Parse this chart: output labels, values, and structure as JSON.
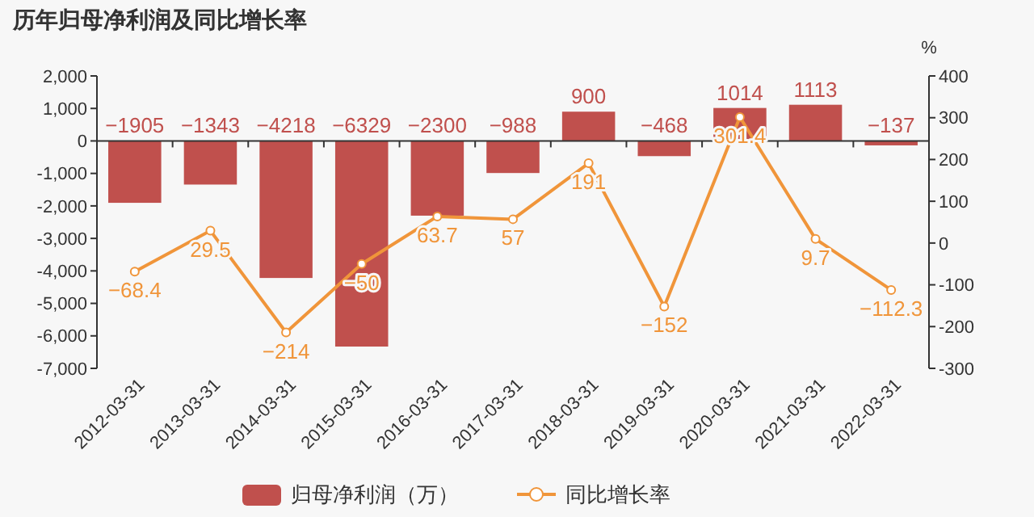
{
  "chart_data": {
    "type": "bar",
    "title": "历年归母净利润及同比增长率",
    "y2label": "%",
    "categories": [
      "2012-03-31",
      "2013-03-31",
      "2014-03-31",
      "2015-03-31",
      "2016-03-31",
      "2017-03-31",
      "2018-03-31",
      "2019-03-31",
      "2020-03-31",
      "2021-03-31",
      "2022-03-31"
    ],
    "series": [
      {
        "name": "归母净利润（万）",
        "color": "#c0504d",
        "values": [
          -1905,
          -1343,
          -4218,
          -6329,
          -2300,
          -988,
          900,
          -468,
          1014,
          1113,
          -137
        ]
      },
      {
        "name": "同比增长率",
        "type": "line",
        "axis": "y2",
        "color": "#f0953a",
        "marker": "circle",
        "values": [
          -68.4,
          29.5,
          -214,
          -50,
          63.7,
          57,
          191,
          -152,
          301.4,
          9.7,
          -112.3
        ]
      }
    ],
    "ylim": [
      -7000,
      2000
    ],
    "yticks": [
      {
        "value": -7000,
        "label": "-7,000"
      },
      {
        "value": -6000,
        "label": "-6,000"
      },
      {
        "value": -5000,
        "label": "-5,000"
      },
      {
        "value": -4000,
        "label": "-4,000"
      },
      {
        "value": -3000,
        "label": "-3,000"
      },
      {
        "value": -2000,
        "label": "-2,000"
      },
      {
        "value": -1000,
        "label": "-1,000"
      },
      0,
      {
        "value": 1000,
        "label": "1,000"
      },
      {
        "value": 2000,
        "label": "2,000"
      }
    ],
    "y2lim": [
      -300,
      400
    ],
    "y2ticks": [
      -300,
      -200,
      -100,
      0,
      100,
      200,
      300,
      400
    ],
    "data_labels": true,
    "legend": "bottom"
  }
}
